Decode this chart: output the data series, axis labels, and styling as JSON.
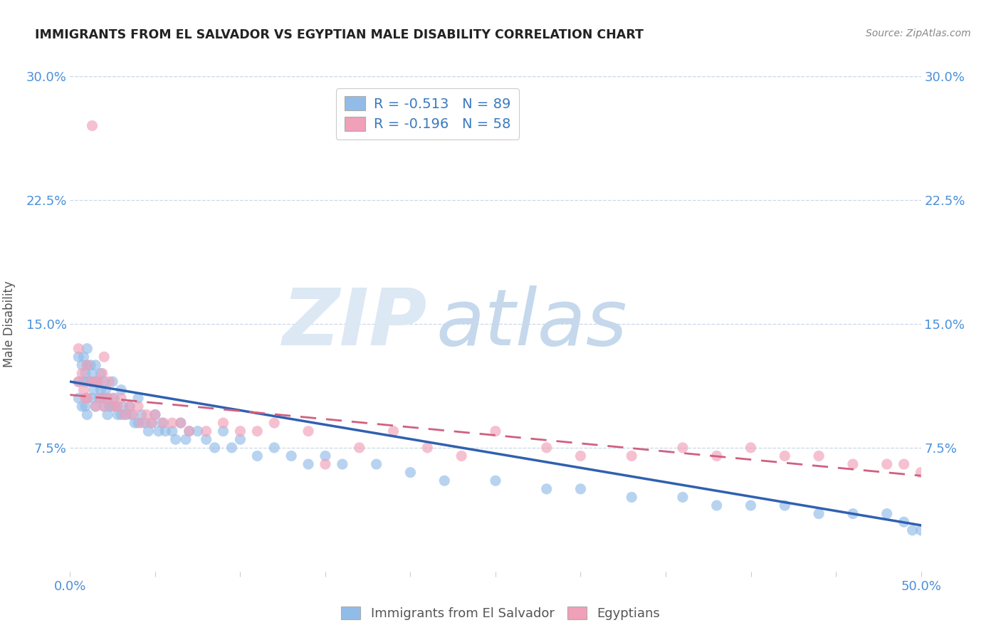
{
  "title": "IMMIGRANTS FROM EL SALVADOR VS EGYPTIAN MALE DISABILITY CORRELATION CHART",
  "source": "Source: ZipAtlas.com",
  "ylabel": "Male Disability",
  "xlim": [
    0.0,
    0.5
  ],
  "ylim": [
    0.0,
    0.3
  ],
  "xticks": [
    0.0,
    0.05,
    0.1,
    0.15,
    0.2,
    0.25,
    0.3,
    0.35,
    0.4,
    0.45,
    0.5
  ],
  "yticks": [
    0.075,
    0.15,
    0.225,
    0.3
  ],
  "ytick_labels": [
    "7.5%",
    "15.0%",
    "22.5%",
    "30.0%"
  ],
  "xtick_label_left": "0.0%",
  "xtick_label_right": "50.0%",
  "blue_R": -0.513,
  "blue_N": 89,
  "pink_R": -0.196,
  "pink_N": 58,
  "blue_color": "#92bce8",
  "pink_color": "#f0a0b8",
  "blue_line_color": "#3060b0",
  "pink_line_color": "#d06080",
  "legend_label_blue": "Immigrants from El Salvador",
  "legend_label_pink": "Egyptians",
  "grid_color": "#c8d8e8",
  "blue_scatter_x": [
    0.005,
    0.005,
    0.005,
    0.007,
    0.007,
    0.008,
    0.008,
    0.009,
    0.009,
    0.01,
    0.01,
    0.01,
    0.01,
    0.01,
    0.012,
    0.012,
    0.013,
    0.013,
    0.014,
    0.015,
    0.015,
    0.015,
    0.016,
    0.017,
    0.018,
    0.018,
    0.019,
    0.02,
    0.02,
    0.021,
    0.022,
    0.022,
    0.023,
    0.025,
    0.025,
    0.026,
    0.027,
    0.028,
    0.03,
    0.03,
    0.031,
    0.033,
    0.035,
    0.036,
    0.038,
    0.04,
    0.04,
    0.042,
    0.044,
    0.046,
    0.048,
    0.05,
    0.052,
    0.054,
    0.056,
    0.06,
    0.062,
    0.065,
    0.068,
    0.07,
    0.075,
    0.08,
    0.085,
    0.09,
    0.095,
    0.1,
    0.11,
    0.12,
    0.13,
    0.14,
    0.15,
    0.16,
    0.18,
    0.2,
    0.22,
    0.25,
    0.28,
    0.3,
    0.33,
    0.36,
    0.38,
    0.4,
    0.42,
    0.44,
    0.46,
    0.48,
    0.49,
    0.495,
    0.5
  ],
  "blue_scatter_y": [
    0.13,
    0.115,
    0.105,
    0.125,
    0.1,
    0.13,
    0.115,
    0.12,
    0.1,
    0.135,
    0.125,
    0.115,
    0.105,
    0.095,
    0.125,
    0.115,
    0.12,
    0.105,
    0.11,
    0.125,
    0.115,
    0.1,
    0.115,
    0.105,
    0.12,
    0.11,
    0.105,
    0.115,
    0.1,
    0.11,
    0.105,
    0.095,
    0.1,
    0.115,
    0.1,
    0.105,
    0.1,
    0.095,
    0.11,
    0.095,
    0.1,
    0.095,
    0.1,
    0.095,
    0.09,
    0.105,
    0.09,
    0.095,
    0.09,
    0.085,
    0.09,
    0.095,
    0.085,
    0.09,
    0.085,
    0.085,
    0.08,
    0.09,
    0.08,
    0.085,
    0.085,
    0.08,
    0.075,
    0.085,
    0.075,
    0.08,
    0.07,
    0.075,
    0.07,
    0.065,
    0.07,
    0.065,
    0.065,
    0.06,
    0.055,
    0.055,
    0.05,
    0.05,
    0.045,
    0.045,
    0.04,
    0.04,
    0.04,
    0.035,
    0.035,
    0.035,
    0.03,
    0.025,
    0.025
  ],
  "pink_scatter_x": [
    0.005,
    0.005,
    0.007,
    0.008,
    0.009,
    0.01,
    0.01,
    0.012,
    0.013,
    0.015,
    0.015,
    0.017,
    0.018,
    0.019,
    0.02,
    0.02,
    0.022,
    0.023,
    0.025,
    0.026,
    0.028,
    0.03,
    0.032,
    0.035,
    0.037,
    0.04,
    0.042,
    0.045,
    0.048,
    0.05,
    0.055,
    0.06,
    0.065,
    0.07,
    0.08,
    0.09,
    0.1,
    0.11,
    0.12,
    0.14,
    0.15,
    0.17,
    0.19,
    0.21,
    0.23,
    0.25,
    0.28,
    0.3,
    0.33,
    0.36,
    0.38,
    0.4,
    0.42,
    0.44,
    0.46,
    0.48,
    0.49,
    0.5
  ],
  "pink_scatter_y": [
    0.135,
    0.115,
    0.12,
    0.11,
    0.105,
    0.125,
    0.105,
    0.115,
    0.27,
    0.115,
    0.1,
    0.115,
    0.105,
    0.12,
    0.13,
    0.1,
    0.105,
    0.115,
    0.105,
    0.1,
    0.1,
    0.105,
    0.095,
    0.1,
    0.095,
    0.1,
    0.09,
    0.095,
    0.09,
    0.095,
    0.09,
    0.09,
    0.09,
    0.085,
    0.085,
    0.09,
    0.085,
    0.085,
    0.09,
    0.085,
    0.065,
    0.075,
    0.085,
    0.075,
    0.07,
    0.085,
    0.075,
    0.07,
    0.07,
    0.075,
    0.07,
    0.075,
    0.07,
    0.07,
    0.065,
    0.065,
    0.065,
    0.06
  ],
  "blue_line_x0": 0.0,
  "blue_line_x1": 0.5,
  "blue_line_y0": 0.115,
  "blue_line_y1": 0.028,
  "pink_line_x0": 0.0,
  "pink_line_x1": 0.5,
  "pink_line_y0": 0.107,
  "pink_line_y1": 0.058
}
